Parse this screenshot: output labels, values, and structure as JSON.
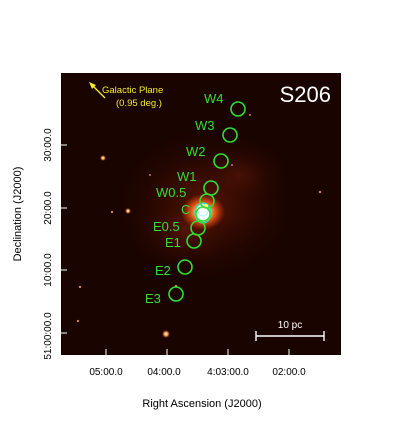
{
  "figure": {
    "field_label": "S206",
    "galactic_plane": {
      "line1": "Galactic Plane",
      "line2": "(0.95 deg.)"
    },
    "scale_bar_label": "10 pc",
    "x_axis_label": "Right Ascension (J2000)",
    "y_axis_label": "Declination (J2000)",
    "x_ticks": [
      "05:00.0",
      "04:00.0",
      "4:03:00.0",
      "02:00.0"
    ],
    "y_ticks": [
      "30:00.0",
      "20:00.0",
      "10:00.0",
      "51:00:00.0"
    ],
    "regions": [
      "W4",
      "W3",
      "W2",
      "W1",
      "W0.5",
      "C",
      "E0.5",
      "E1",
      "E2",
      "E3"
    ],
    "colors": {
      "region_marker": "#33dd33",
      "annotation": "#f2ee2a",
      "label_white": "#ffffff",
      "background": "#1a0400"
    }
  }
}
